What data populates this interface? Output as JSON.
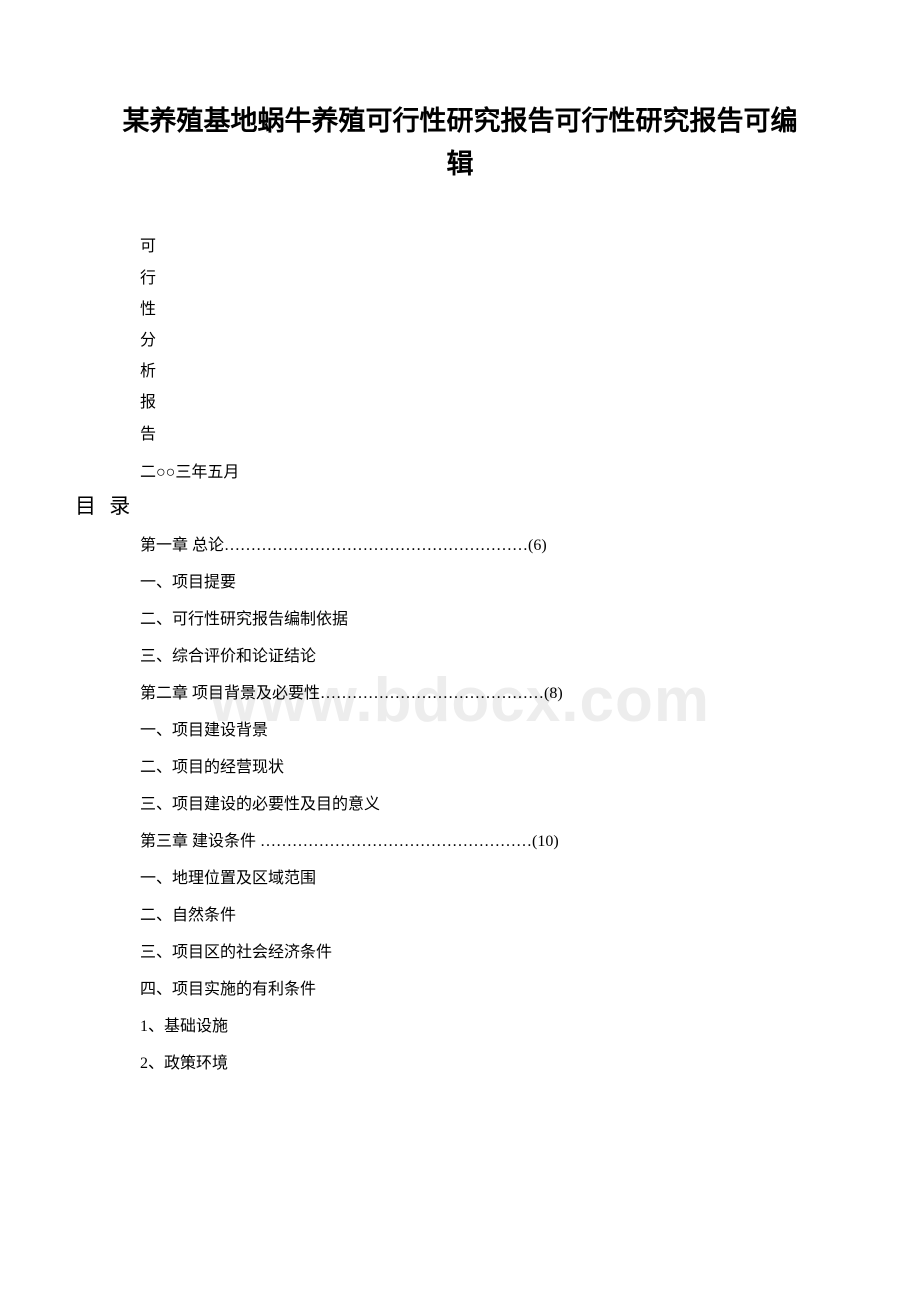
{
  "watermark": "www.bdocx.com",
  "title": {
    "line1": "某养殖基地蜗牛养殖可行性研究报告可行性研究报告可编",
    "line2": "辑"
  },
  "verticalChars": [
    "可",
    "行",
    "性",
    "分",
    "析",
    "报",
    "告"
  ],
  "dateLine": "二○○三年五月",
  "tocHeader": "目 录",
  "tocItems": [
    "第一章 总论…………………………………………………(6)",
    "一、项目提要",
    "二、可行性研究报告编制依据",
    "三、综合评价和论证结论",
    "第二章 项目背景及必要性……………………………………(8)",
    "一、项目建设背景",
    "二、项目的经营现状",
    "三、项目建设的必要性及目的意义",
    "第三章 建设条件 ……………………………………………(10)",
    "一、地理位置及区域范围",
    "二、自然条件",
    "三、项目区的社会经济条件",
    "四、项目实施的有利条件",
    "1、基础设施",
    "2、政策环境"
  ],
  "colors": {
    "background": "#ffffff",
    "text": "#000000",
    "watermark": "#ededed"
  },
  "typography": {
    "titleFontSize": 27,
    "bodyFontSize": 16,
    "tocHeaderFontSize": 21,
    "watermarkFontSize": 62,
    "fontFamily": "SimSun"
  }
}
